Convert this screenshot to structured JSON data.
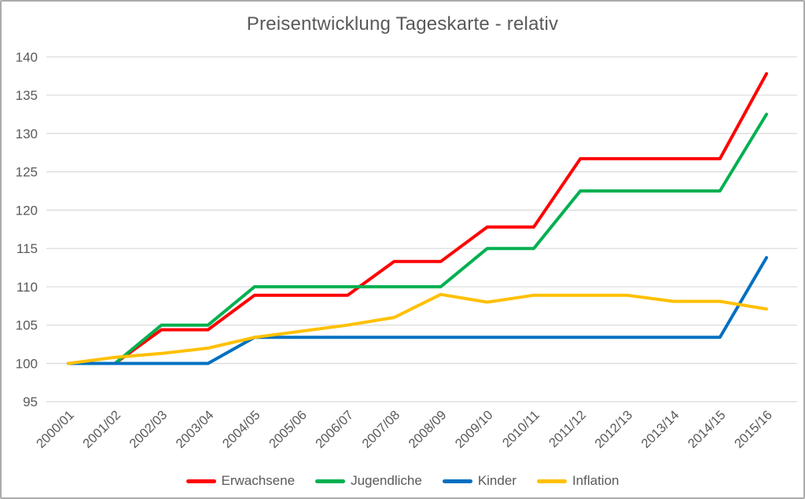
{
  "chart_data": {
    "type": "line",
    "title": "Preisentwicklung Tageskarte - relativ",
    "xlabel": "",
    "ylabel": "",
    "ylim": [
      95,
      140
    ],
    "y_ticks": [
      140,
      135,
      130,
      125,
      120,
      115,
      110,
      105,
      100,
      95
    ],
    "grid": "horizontal",
    "legend_position": "bottom",
    "categories": [
      "2000/01",
      "2001/02",
      "2002/03",
      "2003/04",
      "2004/05",
      "2005/06",
      "2006/07",
      "2007/08",
      "2008/09",
      "2009/10",
      "2010/11",
      "2011/12",
      "2012/13",
      "2013/14",
      "2014/15",
      "2015/16"
    ],
    "series": [
      {
        "name": "Erwachsene",
        "color": "#FF0000",
        "values": [
          100,
          100,
          104.4,
          104.4,
          108.9,
          108.9,
          108.9,
          113.3,
          113.3,
          117.8,
          117.8,
          126.7,
          126.7,
          126.7,
          126.7,
          137.8
        ]
      },
      {
        "name": "Jugendliche",
        "color": "#00B050",
        "values": [
          100,
          100,
          105,
          105,
          110,
          110,
          110,
          110,
          110,
          115,
          115,
          122.5,
          122.5,
          122.5,
          122.5,
          132.5
        ]
      },
      {
        "name": "Kinder",
        "color": "#0070C0",
        "values": [
          100,
          100,
          100,
          100,
          103.4,
          103.4,
          103.4,
          103.4,
          103.4,
          103.4,
          103.4,
          103.4,
          103.4,
          103.4,
          103.4,
          113.8
        ]
      },
      {
        "name": "Inflation",
        "color": "#FFC000",
        "values": [
          100,
          100.8,
          101.3,
          102,
          103.4,
          104.2,
          105,
          106,
          109,
          108,
          108.9,
          108.9,
          108.9,
          108.1,
          108.1,
          107.1
        ]
      }
    ]
  }
}
